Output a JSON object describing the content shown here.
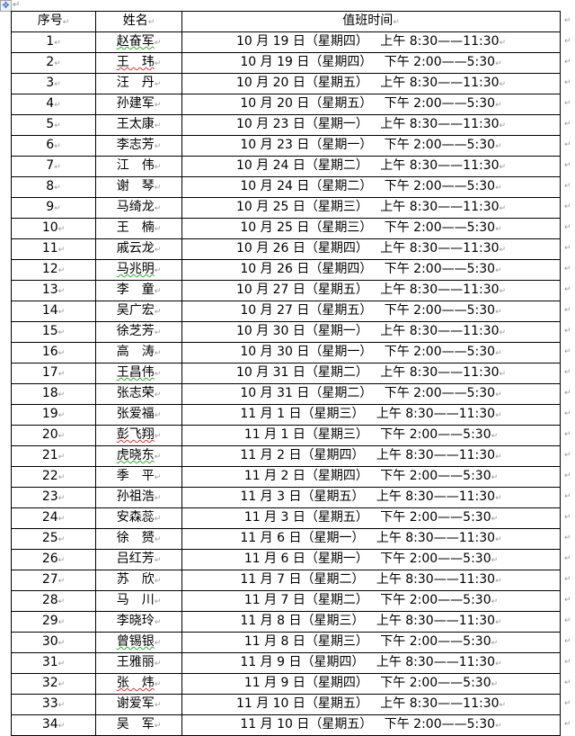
{
  "header": {
    "no": "序号",
    "name": "姓名",
    "time": "值班时间"
  },
  "rows": [
    {
      "no": "1",
      "name": "赵奋军",
      "date": "10 月 19 日（星期四）",
      "period": "上午 8:30——11:30",
      "spell": "green"
    },
    {
      "no": "2",
      "name": "王　玮",
      "date": "10 月 19 日（星期四）",
      "period": "下午 2:00——5:30",
      "spell": "red"
    },
    {
      "no": "3",
      "name": "汪　丹",
      "date": "10 月 20 日（星期五）",
      "period": "上午 8:30——11:30"
    },
    {
      "no": "4",
      "name": "孙建军",
      "date": "10 月 20 日（星期五）",
      "period": "下午 2:00——5:30"
    },
    {
      "no": "5",
      "name": "王太康",
      "date": "10 月 23 日（星期一）",
      "period": "上午 8:30——11:30"
    },
    {
      "no": "6",
      "name": "李志芳",
      "date": "10 月 23 日（星期一）",
      "period": "下午 2:00——5:30"
    },
    {
      "no": "7",
      "name": "江　伟",
      "date": "10 月 24 日（星期二）",
      "period": "上午 8:30——11:30"
    },
    {
      "no": "8",
      "name": "谢　琴",
      "date": "10 月 24 日（星期二）",
      "period": "下午 2:00——5:30"
    },
    {
      "no": "9",
      "name": "马绮龙",
      "date": "10 月 25 日（星期三）",
      "period": "上午 8:30——11:30"
    },
    {
      "no": "10",
      "name": "王　楠",
      "date": "10 月 25 日（星期三）",
      "period": "下午 2:00——5:30"
    },
    {
      "no": "11",
      "name": "戚云龙",
      "date": "10 月 26 日（星期四）",
      "period": "上午 8:30——11:30"
    },
    {
      "no": "12",
      "name": "马兆明",
      "date": "10 月 26 日（星期四）",
      "period": "下午 2:00——5:30",
      "spell": "green"
    },
    {
      "no": "13",
      "name": "李　童",
      "date": "10 月 27 日（星期五）",
      "period": "上午 8:30——11:30"
    },
    {
      "no": "14",
      "name": "吴广宏",
      "date": "10 月 27 日（星期五）",
      "period": "下午 2:00——5:30"
    },
    {
      "no": "15",
      "name": "徐芝芳",
      "date": "10 月 30 日（星期一）",
      "period": "上午 8:30——11:30"
    },
    {
      "no": "16",
      "name": "高　涛",
      "date": "10 月 30 日（星期一）",
      "period": "下午 2:00——5:30"
    },
    {
      "no": "17",
      "name": "王昌伟",
      "date": "10 月 31 日（星期二）",
      "period": "上午 8:30——11:30",
      "spell": "green"
    },
    {
      "no": "18",
      "name": "张志荣",
      "date": "10 月 31 日（星期二）",
      "period": "下午 2:00——5:30"
    },
    {
      "no": "19",
      "name": "张爱福",
      "date": "11 月 1 日（星期三）",
      "period": "上午 8:30——11:30"
    },
    {
      "no": "20",
      "name": "彭飞翔",
      "date": "11 月 1 日（星期三）",
      "period": "下午 2:00——5:30",
      "spell": "red"
    },
    {
      "no": "21",
      "name": "虎晓东",
      "date": "11 月 2 日（星期四）",
      "period": "上午 8:30——11:30",
      "spell": "green"
    },
    {
      "no": "22",
      "name": "季　平",
      "date": "11 月 2 日（星期四）",
      "period": "下午 2:00——5:30"
    },
    {
      "no": "23",
      "name": "孙祖浩",
      "date": "11 月 3 日（星期五）",
      "period": "上午 8:30——11:30"
    },
    {
      "no": "24",
      "name": "安森蕊",
      "date": "11 月 3 日（星期五）",
      "period": "下午 2:00——5:30"
    },
    {
      "no": "25",
      "name": "徐　赟",
      "date": "11 月 6 日（星期一）",
      "period": "上午 8:30——11:30"
    },
    {
      "no": "26",
      "name": "吕红芳",
      "date": "11 月 6 日（星期一）",
      "period": "下午 2:00——5:30"
    },
    {
      "no": "27",
      "name": "苏　欣",
      "date": "11 月 7 日（星期二）",
      "period": "上午 8:30——11:30"
    },
    {
      "no": "28",
      "name": "马　川",
      "date": "11 月 7 日（星期二）",
      "period": "下午 2:00——5:30"
    },
    {
      "no": "29",
      "name": "李晓玲",
      "date": "11 月 8 日（星期三）",
      "period": "上午 8:30——11:30"
    },
    {
      "no": "30",
      "name": "曾锡银",
      "date": "11 月 8 日（星期三）",
      "period": "下午 2:00——5:30",
      "spell": "green"
    },
    {
      "no": "31",
      "name": "王雅丽",
      "date": "11 月 9 日（星期四）",
      "period": "上午 8:30——11:30"
    },
    {
      "no": "32",
      "name": "张　炜",
      "date": "11 月 9 日（星期四）",
      "period": "下午 2:00——5:30",
      "spell": "red"
    },
    {
      "no": "33",
      "name": "谢爱军",
      "date": "11 月 10 日（星期五）",
      "period": "上午 8:30——11:30"
    },
    {
      "no": "34",
      "name": "吴　军",
      "date": "11 月 10 日（星期五）",
      "period": "下午 2:00——5:30"
    }
  ],
  "colors": {
    "spell_green": "#33aa33",
    "spell_red": "#dd3333",
    "border": "#000000"
  }
}
